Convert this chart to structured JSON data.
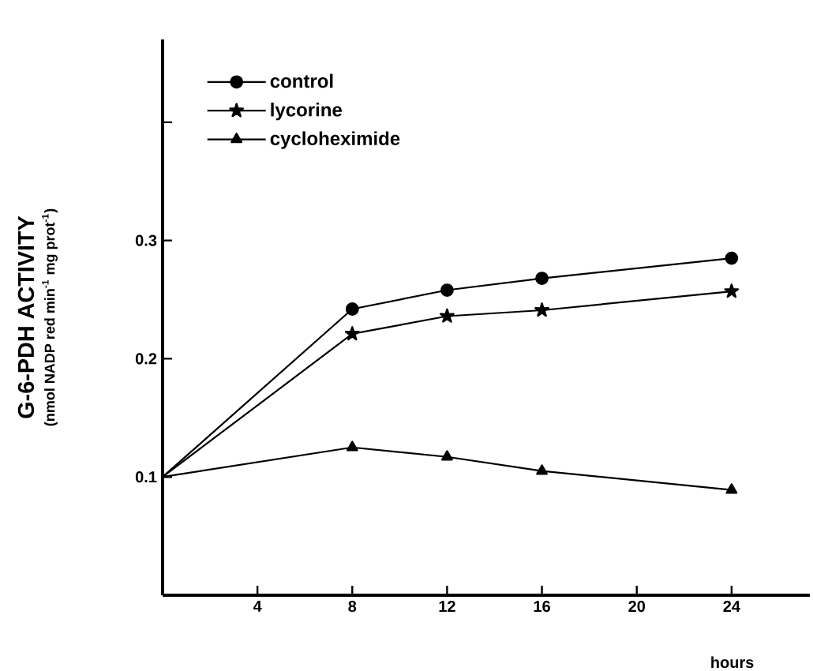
{
  "chart_data": {
    "type": "line",
    "ylabel": "G-6-PDH  ACTIVITY",
    "xlabel": "hours",
    "annotations": [
      "(nmol NADP red min$^{-1}$ mg prot$^{-1}$)"
    ],
    "x": [
      0,
      8,
      12,
      16,
      24
    ],
    "series": [
      {
        "name": "control",
        "color": "#000000",
        "marker": "circle",
        "values": [
          0.1,
          0.242,
          0.258,
          0.268,
          0.285
        ]
      },
      {
        "name": "lycorine",
        "color": "#000000",
        "marker": "star",
        "values": [
          0.1,
          0.221,
          0.236,
          0.241,
          0.257
        ]
      },
      {
        "name": "cycloheximide",
        "color": "#000000",
        "marker": "triangle",
        "values": [
          0.1,
          0.125,
          0.117,
          0.105,
          0.089
        ]
      }
    ],
    "xlim": [
      0,
      27.3
    ],
    "ylim": [
      0,
      0.47
    ],
    "xticks": [
      4,
      8,
      12,
      16,
      20,
      24
    ],
    "yticks": [
      0.1,
      0.2,
      0.3,
      {
        "value": 0.4,
        "label": null
      }
    ],
    "legend": "top left",
    "grid": false,
    "line_style": "solid"
  }
}
